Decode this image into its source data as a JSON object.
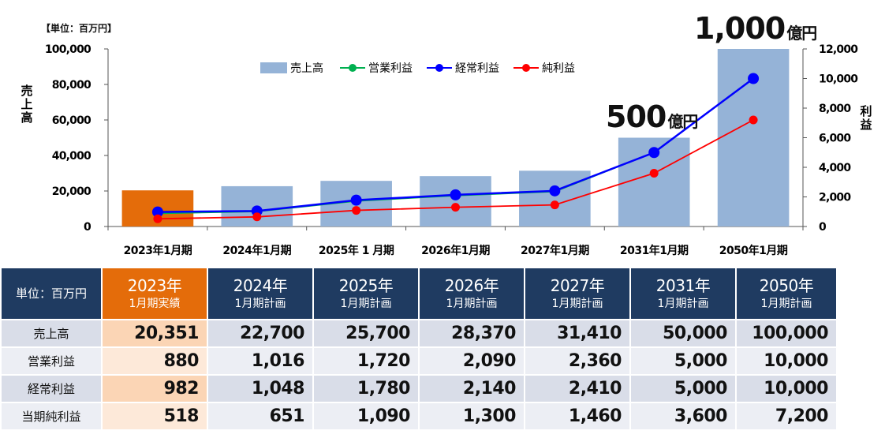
{
  "unit_label": "【単位：百万円】",
  "annotations": [
    {
      "number": "500",
      "suffix": "億円"
    },
    {
      "number": "1,000",
      "suffix": "億円"
    }
  ],
  "chart_data": {
    "type": "bar",
    "categories": [
      "2023年1月期",
      "2024年1月期",
      "2025年 1 月期",
      "2026年1月期",
      "2027年1月期",
      "2031年1月期",
      "2050年1月期"
    ],
    "ylabel": "売上高",
    "y2label": "利益",
    "ylim": [
      0,
      100000
    ],
    "y2lim": [
      0,
      12000
    ],
    "yticks": [
      "0",
      "20,000",
      "40,000",
      "60,000",
      "80,000",
      "100,000"
    ],
    "y2ticks": [
      "0",
      "2,000",
      "4,000",
      "6,000",
      "8,000",
      "10,000",
      "12,000"
    ],
    "legend_position": "top",
    "highlight_color": "#e46c0a",
    "series": [
      {
        "name": "売上高",
        "type": "bar",
        "axis": "left",
        "color": "#95b3d7",
        "values": [
          20351,
          22700,
          25700,
          28370,
          31410,
          50000,
          100000
        ]
      },
      {
        "name": "営業利益",
        "type": "line",
        "axis": "right",
        "color": "#00b050",
        "values": [
          880,
          1016,
          1720,
          2090,
          2360,
          5000,
          10000
        ]
      },
      {
        "name": "経常利益",
        "type": "line",
        "axis": "right",
        "color": "#0000ff",
        "values": [
          982,
          1048,
          1780,
          2140,
          2410,
          5000,
          10000
        ]
      },
      {
        "name": "純利益",
        "type": "line",
        "axis": "right",
        "color": "#ff0000",
        "values": [
          518,
          651,
          1090,
          1300,
          1460,
          3600,
          7200
        ]
      }
    ]
  },
  "table": {
    "corner": "単位：百万円",
    "columns": [
      {
        "year": "2023年",
        "sub": "1月期実績"
      },
      {
        "year": "2024年",
        "sub": "1月期計画"
      },
      {
        "year": "2025年",
        "sub": "1月期計画"
      },
      {
        "year": "2026年",
        "sub": "1月期計画"
      },
      {
        "year": "2027年",
        "sub": "1月期計画"
      },
      {
        "year": "2031年",
        "sub": "1月期計画"
      },
      {
        "year": "2050年",
        "sub": "1月期計画"
      }
    ],
    "rows": [
      {
        "label": "売上高",
        "values": [
          "20,351",
          "22,700",
          "25,700",
          "28,370",
          "31,410",
          "50,000",
          "100,000"
        ]
      },
      {
        "label": "営業利益",
        "values": [
          "880",
          "1,016",
          "1,720",
          "2,090",
          "2,360",
          "5,000",
          "10,000"
        ]
      },
      {
        "label": "経常利益",
        "values": [
          "982",
          "1,048",
          "1,780",
          "2,140",
          "2,410",
          "5,000",
          "10,000"
        ]
      },
      {
        "label": "当期純利益",
        "values": [
          "518",
          "651",
          "1,090",
          "1,300",
          "1,460",
          "3,600",
          "7,200"
        ]
      }
    ]
  }
}
